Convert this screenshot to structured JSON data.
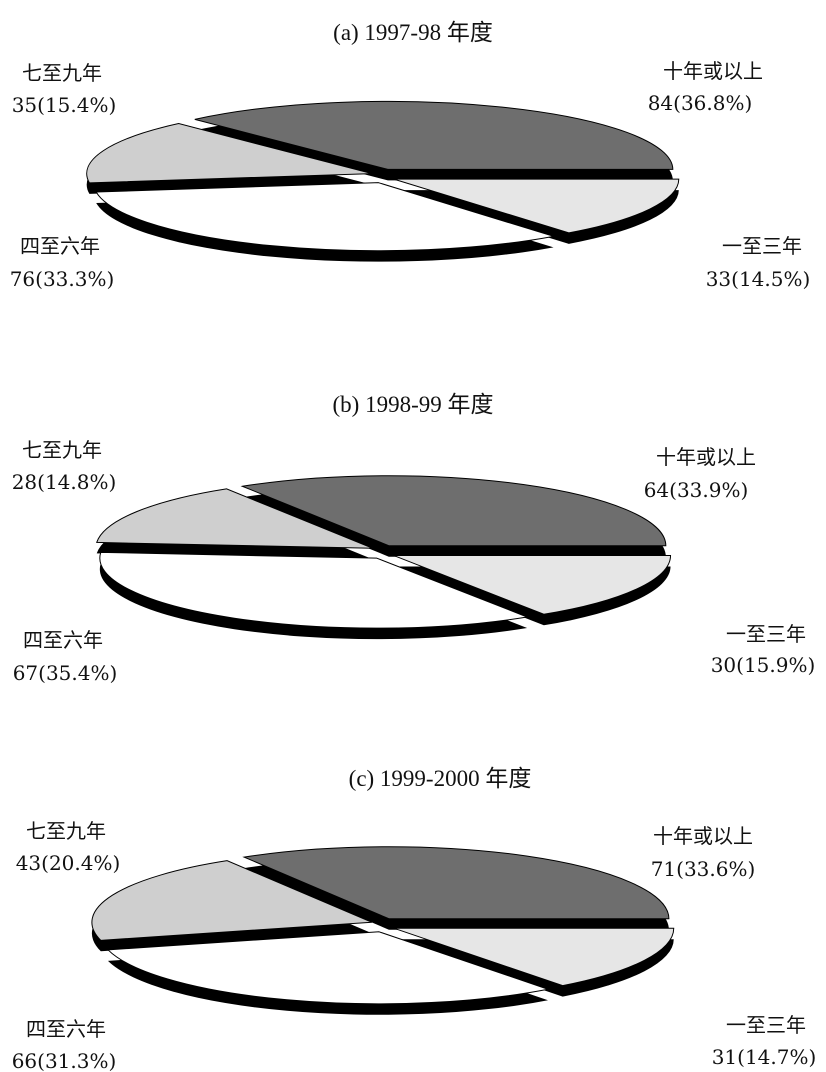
{
  "chart_data": [
    {
      "type": "pie",
      "title": "(a) 1997-98 年度",
      "slices": [
        {
          "label": "十年或以上",
          "value": 84,
          "percent": "36.8%",
          "display": "84(36.8%)"
        },
        {
          "label": "一至三年",
          "value": 33,
          "percent": "14.5%",
          "display": "33(14.5%)"
        },
        {
          "label": "四至六年",
          "value": 76,
          "percent": "33.3%",
          "display": "76(33.3%)"
        },
        {
          "label": "七至九年",
          "value": 35,
          "percent": "15.4%",
          "display": "35(15.4%)"
        }
      ]
    },
    {
      "type": "pie",
      "title": "(b) 1998-99 年度",
      "slices": [
        {
          "label": "十年或以上",
          "value": 64,
          "percent": "33.9%",
          "display": "64(33.9%)"
        },
        {
          "label": "一至三年",
          "value": 30,
          "percent": "15.9%",
          "display": "30(15.9%)"
        },
        {
          "label": "四至六年",
          "value": 67,
          "percent": "35.4%",
          "display": "67(35.4%)"
        },
        {
          "label": "七至九年",
          "value": 28,
          "percent": "14.8%",
          "display": "28(14.8%)"
        }
      ]
    },
    {
      "type": "pie",
      "title": "(c) 1999-2000 年度",
      "slices": [
        {
          "label": "十年或以上",
          "value": 71,
          "percent": "33.6%",
          "display": "71(33.6%)"
        },
        {
          "label": "一至三年",
          "value": 31,
          "percent": "14.7%",
          "display": "31(14.7%)"
        },
        {
          "label": "四至六年",
          "value": 66,
          "percent": "31.3%",
          "display": "66(31.3%)"
        },
        {
          "label": "七至九年",
          "value": 43,
          "percent": "20.4%",
          "display": "43(20.4%)"
        }
      ]
    }
  ],
  "colors": {
    "十年或以上": "#6e6e6e",
    "一至三年": "#e6e6e6",
    "四至六年": "#ffffff",
    "七至九年": "#cfcfcf",
    "edge": "#000000"
  }
}
